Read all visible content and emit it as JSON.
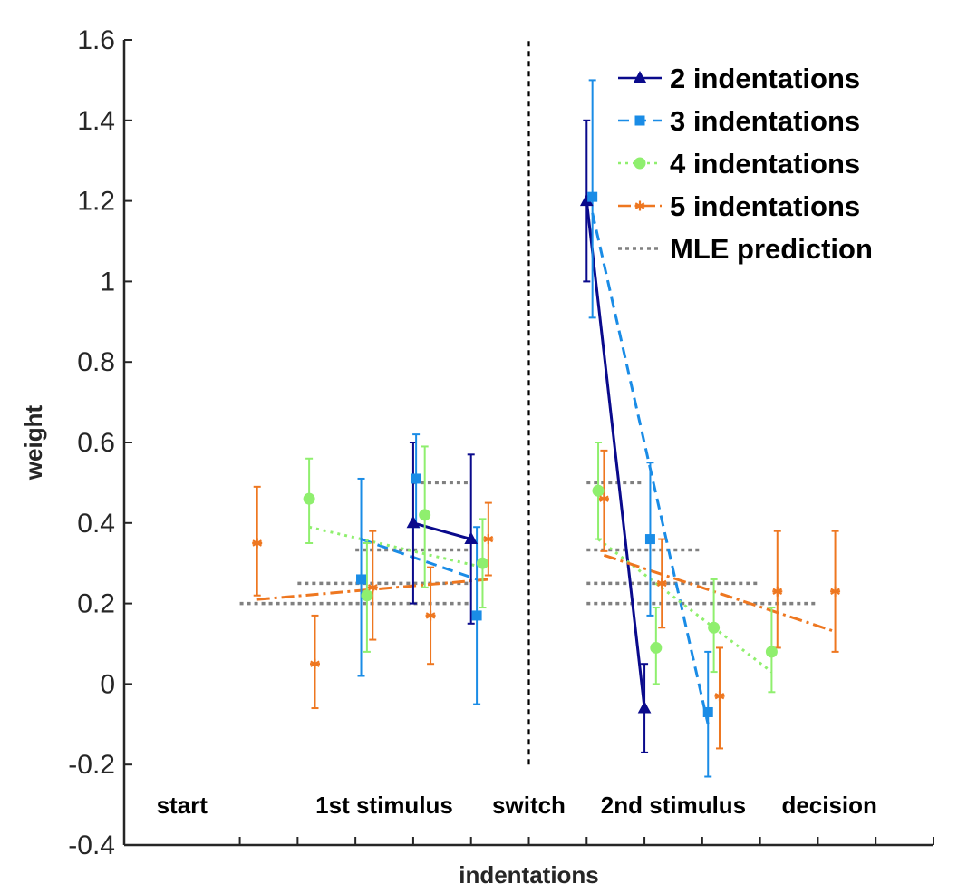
{
  "chart_data": {
    "type": "line",
    "xlabel": "indentations",
    "ylabel": "weight",
    "ylim": [
      -0.4,
      1.6
    ],
    "xlim": [
      0,
      14
    ],
    "yticks": [
      -0.4,
      -0.2,
      0,
      0.2,
      0.4,
      0.6,
      0.8,
      1,
      1.2,
      1.4,
      1.6
    ],
    "ytick_labels": [
      "-0.4",
      "-0.2",
      "0",
      "0.2",
      "0.4",
      "0.6",
      "0.8",
      "1",
      "1.2",
      "1.4",
      "1.6"
    ],
    "xticks": [
      2,
      3,
      4,
      5,
      6,
      7,
      8,
      9,
      10,
      11,
      12,
      13,
      14
    ],
    "grid": false,
    "legend_position": "top-right",
    "phase_labels": [
      {
        "text": "start",
        "x": 1
      },
      {
        "text": "1st stimulus",
        "x": 4.5
      },
      {
        "text": "switch",
        "x": 7
      },
      {
        "text": "2nd stimulus",
        "x": 9.5
      },
      {
        "text": "decision",
        "x": 12.2
      }
    ],
    "switch_line_x": 7,
    "switch_line_y": [
      -0.2,
      1.6
    ],
    "series": [
      {
        "name": "2 indentations",
        "color": "#0a0a8c",
        "marker": "triangle",
        "dash": "solid",
        "points": [
          {
            "x": 5.0,
            "y": 0.4,
            "lo": 0.2,
            "hi": 0.6
          },
          {
            "x": 6.0,
            "y": 0.36,
            "lo": 0.15,
            "hi": 0.57
          },
          {
            "x": 8.0,
            "y": 1.2,
            "lo": 1.0,
            "hi": 1.4
          },
          {
            "x": 9.0,
            "y": -0.06,
            "lo": -0.17,
            "hi": 0.05
          }
        ],
        "fits": [
          {
            "x": [
              5.0,
              6.0
            ],
            "y": [
              0.4,
              0.36
            ]
          },
          {
            "x": [
              8.0,
              9.0
            ],
            "y": [
              1.2,
              -0.06
            ]
          }
        ]
      },
      {
        "name": "3 indentations",
        "color": "#1a8ce6",
        "marker": "square",
        "dash": "dashed",
        "points": [
          {
            "x": 4.1,
            "y": 0.26,
            "lo": 0.02,
            "hi": 0.51
          },
          {
            "x": 5.05,
            "y": 0.51,
            "lo": 0.39,
            "hi": 0.62
          },
          {
            "x": 6.1,
            "y": 0.17,
            "lo": -0.05,
            "hi": 0.39
          },
          {
            "x": 8.1,
            "y": 1.21,
            "lo": 0.91,
            "hi": 1.5
          },
          {
            "x": 9.1,
            "y": 0.36,
            "lo": 0.17,
            "hi": 0.55
          },
          {
            "x": 10.1,
            "y": -0.07,
            "lo": -0.23,
            "hi": 0.08
          }
        ],
        "fits": [
          {
            "x": [
              4.1,
              6.1
            ],
            "y": [
              0.36,
              0.26
            ]
          },
          {
            "x": [
              8.1,
              10.1
            ],
            "y": [
              1.17,
              -0.1
            ]
          }
        ]
      },
      {
        "name": "4 indentations",
        "color": "#8fef6e",
        "marker": "circle",
        "dash": "dotted",
        "points": [
          {
            "x": 3.2,
            "y": 0.46,
            "lo": 0.35,
            "hi": 0.56
          },
          {
            "x": 4.2,
            "y": 0.22,
            "lo": 0.08,
            "hi": 0.35
          },
          {
            "x": 5.2,
            "y": 0.42,
            "lo": 0.24,
            "hi": 0.59
          },
          {
            "x": 6.2,
            "y": 0.3,
            "lo": 0.19,
            "hi": 0.41
          },
          {
            "x": 8.2,
            "y": 0.48,
            "lo": 0.36,
            "hi": 0.6
          },
          {
            "x": 9.2,
            "y": 0.09,
            "lo": 0.0,
            "hi": 0.19
          },
          {
            "x": 10.2,
            "y": 0.14,
            "lo": 0.03,
            "hi": 0.26
          },
          {
            "x": 11.2,
            "y": 0.08,
            "lo": -0.02,
            "hi": 0.19
          }
        ],
        "fits": [
          {
            "x": [
              3.2,
              6.2
            ],
            "y": [
              0.39,
              0.29
            ]
          },
          {
            "x": [
              8.2,
              11.2
            ],
            "y": [
              0.36,
              0.03
            ]
          }
        ]
      },
      {
        "name": "5 indentations",
        "color": "#ee7720",
        "marker": "asterisk",
        "dash": "dashdot",
        "points": [
          {
            "x": 2.3,
            "y": 0.35,
            "lo": 0.22,
            "hi": 0.49
          },
          {
            "x": 3.3,
            "y": 0.05,
            "lo": -0.06,
            "hi": 0.17
          },
          {
            "x": 4.3,
            "y": 0.24,
            "lo": 0.11,
            "hi": 0.38
          },
          {
            "x": 5.3,
            "y": 0.17,
            "lo": 0.05,
            "hi": 0.29
          },
          {
            "x": 6.3,
            "y": 0.36,
            "lo": 0.27,
            "hi": 0.45
          },
          {
            "x": 8.3,
            "y": 0.46,
            "lo": 0.33,
            "hi": 0.58
          },
          {
            "x": 9.3,
            "y": 0.25,
            "lo": 0.14,
            "hi": 0.36
          },
          {
            "x": 10.3,
            "y": -0.03,
            "lo": -0.16,
            "hi": 0.09
          },
          {
            "x": 11.3,
            "y": 0.23,
            "lo": 0.09,
            "hi": 0.38
          },
          {
            "x": 12.3,
            "y": 0.23,
            "lo": 0.08,
            "hi": 0.38
          }
        ],
        "fits": [
          {
            "x": [
              2.3,
              6.3
            ],
            "y": [
              0.21,
              0.26
            ]
          },
          {
            "x": [
              8.3,
              12.3
            ],
            "y": [
              0.32,
              0.13
            ]
          }
        ]
      },
      {
        "name": "MLE prediction",
        "color": "#808080",
        "marker": "none",
        "dash": "dotted",
        "segments": [
          {
            "x": [
              2.0,
              6.0
            ],
            "y": [
              0.2,
              0.2
            ]
          },
          {
            "x": [
              3.0,
              6.0
            ],
            "y": [
              0.25,
              0.25
            ]
          },
          {
            "x": [
              4.0,
              6.0
            ],
            "y": [
              0.333,
              0.333
            ]
          },
          {
            "x": [
              5.0,
              6.0
            ],
            "y": [
              0.5,
              0.5
            ]
          },
          {
            "x": [
              8.0,
              12.0
            ],
            "y": [
              0.2,
              0.2
            ]
          },
          {
            "x": [
              8.0,
              11.0
            ],
            "y": [
              0.25,
              0.25
            ]
          },
          {
            "x": [
              8.0,
              10.0
            ],
            "y": [
              0.333,
              0.333
            ]
          },
          {
            "x": [
              8.0,
              9.0
            ],
            "y": [
              0.5,
              0.5
            ]
          }
        ]
      }
    ]
  }
}
